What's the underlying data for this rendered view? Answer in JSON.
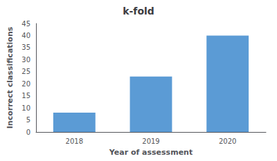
{
  "chart_data": {
    "type": "bar",
    "title": "k-fold",
    "categories": [
      "2018",
      "2019",
      "2020"
    ],
    "values": [
      8,
      23,
      40
    ],
    "color": "#5B9BD5",
    "xlabel": "Year of assessment",
    "ylabel": "Incorrect classifications",
    "ylim": [
      0,
      45
    ],
    "yticks": [
      0,
      5,
      10,
      15,
      20,
      25,
      30,
      35,
      40,
      45
    ],
    "grid": false
  }
}
